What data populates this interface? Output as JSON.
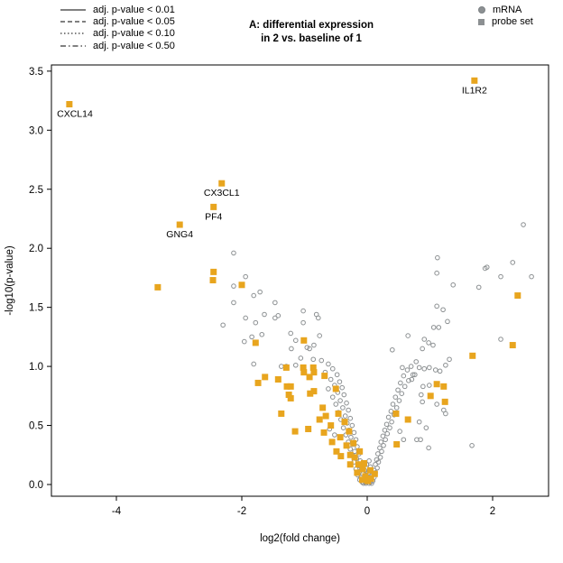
{
  "title": {
    "line1": "A: differential expression",
    "line2": "in 2 vs. baseline of 1"
  },
  "legend_lines": {
    "items": [
      {
        "style": "solid",
        "label": "adj. p-value < 0.01"
      },
      {
        "style": "dashed",
        "label": "adj. p-value < 0.05"
      },
      {
        "style": "dotted",
        "label": "adj. p-value < 0.10"
      },
      {
        "style": "dashdot",
        "label": "adj. p-value < 0.50"
      }
    ]
  },
  "legend_markers": {
    "items": [
      {
        "marker": "circle",
        "label": "mRNA"
      },
      {
        "marker": "square",
        "label": "probe set"
      }
    ]
  },
  "colors": {
    "probe_set_fill": "#e8a51e",
    "mrna_stroke": "#8c9092",
    "axis": "#000000",
    "text": "#000000",
    "background": "#ffffff"
  },
  "chart_data": {
    "type": "scatter",
    "title": "A: differential expression in 2 vs. baseline of 1",
    "xlabel": "log2(fold change)",
    "ylabel": "-log10(p-value)",
    "xlim": [
      -5.04,
      2.89
    ],
    "ylim": [
      -0.1,
      3.55
    ],
    "x_ticks": [
      -4,
      -2,
      0,
      2
    ],
    "y_ticks": [
      0.0,
      0.5,
      1.0,
      1.5,
      2.0,
      2.5,
      3.0,
      3.5
    ],
    "grid": false,
    "legend_position": "top",
    "labeled_points": [
      {
        "label": "CXCL14",
        "x": -4.75,
        "y": 3.22,
        "series": "probe set"
      },
      {
        "label": "IL1R2",
        "x": 1.71,
        "y": 3.42,
        "series": "probe set"
      },
      {
        "label": "CX3CL1",
        "x": -2.32,
        "y": 2.55,
        "series": "probe set"
      },
      {
        "label": "PF4",
        "x": -2.45,
        "y": 2.35,
        "series": "probe set"
      },
      {
        "label": "GNG4",
        "x": -2.99,
        "y": 2.2,
        "series": "probe set"
      }
    ],
    "series": [
      {
        "name": "mRNA",
        "marker": "open-circle",
        "color": "#8c9092",
        "points": [
          [
            -2.3,
            1.35
          ],
          [
            -2.13,
            1.96
          ],
          [
            -2.13,
            1.68
          ],
          [
            -2.13,
            1.54
          ],
          [
            -1.96,
            1.21
          ],
          [
            -1.94,
            1.76
          ],
          [
            -1.94,
            1.41
          ],
          [
            -1.84,
            1.25
          ],
          [
            -1.81,
            1.6
          ],
          [
            -1.81,
            1.02
          ],
          [
            -1.78,
            1.37
          ],
          [
            -1.71,
            1.63
          ],
          [
            -1.68,
            1.27
          ],
          [
            -1.64,
            1.44
          ],
          [
            -1.47,
            1.54
          ],
          [
            -1.47,
            1.41
          ],
          [
            -1.42,
            1.43
          ],
          [
            -1.37,
            1.0
          ],
          [
            -1.29,
            1.0
          ],
          [
            -1.22,
            1.28
          ],
          [
            -1.21,
            1.15
          ],
          [
            -1.14,
            1.22
          ],
          [
            -1.14,
            1.01
          ],
          [
            -1.06,
            1.07
          ],
          [
            -1.02,
            1.47
          ],
          [
            -1.02,
            1.37
          ],
          [
            -0.96,
            1.16
          ],
          [
            -0.92,
            1.15
          ],
          [
            -0.86,
            1.06
          ],
          [
            -0.85,
            1.18
          ],
          [
            -0.81,
            1.44
          ],
          [
            -0.78,
            1.41
          ],
          [
            -0.76,
            1.26
          ],
          [
            2.62,
            1.76
          ],
          [
            2.49,
            2.2
          ],
          [
            2.32,
            1.88
          ],
          [
            2.13,
            1.76
          ],
          [
            2.13,
            1.23
          ],
          [
            1.91,
            1.84
          ],
          [
            1.88,
            1.83
          ],
          [
            1.78,
            1.67
          ],
          [
            1.67,
            0.33
          ],
          [
            1.37,
            1.69
          ],
          [
            1.31,
            1.06
          ],
          [
            1.28,
            1.38
          ],
          [
            1.25,
            1.01
          ],
          [
            1.25,
            0.6
          ],
          [
            1.22,
            0.63
          ],
          [
            1.21,
            1.48
          ],
          [
            1.16,
            0.96
          ],
          [
            1.14,
            1.33
          ],
          [
            1.12,
            1.92
          ],
          [
            1.11,
            1.79
          ],
          [
            1.11,
            1.51
          ],
          [
            1.11,
            0.68
          ],
          [
            1.09,
            0.97
          ],
          [
            1.06,
            1.33
          ],
          [
            1.05,
            1.18
          ],
          [
            0.99,
            0.99
          ],
          [
            0.99,
            0.84
          ],
          [
            0.98,
            1.2
          ],
          [
            0.98,
            0.31
          ],
          [
            0.94,
            0.48
          ],
          [
            0.91,
            1.23
          ],
          [
            0.91,
            0.98
          ],
          [
            0.89,
            0.83
          ],
          [
            0.88,
            1.15
          ],
          [
            0.88,
            0.7
          ],
          [
            0.86,
            0.76
          ],
          [
            0.85,
            0.38
          ],
          [
            0.83,
            0.99
          ],
          [
            0.83,
            0.53
          ],
          [
            0.79,
            0.38
          ],
          [
            0.76,
            0.93
          ],
          [
            0.71,
            0.89
          ],
          [
            0.65,
            1.26
          ],
          [
            0.56,
            0.99
          ],
          [
            0.4,
            1.14
          ],
          [
            0.52,
            0.45
          ],
          [
            0.58,
            0.38
          ],
          [
            -0.73,
            1.05
          ],
          [
            -0.62,
            1.02
          ],
          [
            -0.55,
            0.98
          ],
          [
            -0.67,
            0.95
          ],
          [
            -0.48,
            0.93
          ],
          [
            -0.58,
            0.89
          ],
          [
            -0.44,
            0.87
          ],
          [
            -0.52,
            0.84
          ],
          [
            -0.62,
            0.81
          ],
          [
            -0.4,
            0.82
          ],
          [
            -0.47,
            0.78
          ],
          [
            -0.55,
            0.74
          ],
          [
            -0.37,
            0.76
          ],
          [
            -0.43,
            0.71
          ],
          [
            -0.5,
            0.68
          ],
          [
            -0.33,
            0.69
          ],
          [
            -0.39,
            0.65
          ],
          [
            -0.46,
            0.61
          ],
          [
            -0.3,
            0.63
          ],
          [
            -0.35,
            0.58
          ],
          [
            -0.42,
            0.55
          ],
          [
            -0.27,
            0.56
          ],
          [
            -0.32,
            0.52
          ],
          [
            -0.38,
            0.48
          ],
          [
            -0.24,
            0.5
          ],
          [
            -0.29,
            0.46
          ],
          [
            -0.34,
            0.42
          ],
          [
            -0.21,
            0.44
          ],
          [
            -0.26,
            0.4
          ],
          [
            -0.3,
            0.36
          ],
          [
            -0.18,
            0.38
          ],
          [
            -0.23,
            0.34
          ],
          [
            -0.27,
            0.3
          ],
          [
            -0.16,
            0.32
          ],
          [
            -0.2,
            0.28
          ],
          [
            -0.24,
            0.25
          ],
          [
            -0.13,
            0.26
          ],
          [
            -0.17,
            0.22
          ],
          [
            -0.21,
            0.19
          ],
          [
            -0.11,
            0.2
          ],
          [
            -0.14,
            0.16
          ],
          [
            -0.18,
            0.13
          ],
          [
            -0.09,
            0.14
          ],
          [
            -0.12,
            0.11
          ],
          [
            -0.15,
            0.08
          ],
          [
            -0.07,
            0.09
          ],
          [
            -0.1,
            0.06
          ],
          [
            -0.12,
            0.04
          ],
          [
            -0.05,
            0.05
          ],
          [
            -0.08,
            0.02
          ],
          [
            -0.03,
            0.02
          ],
          [
            -0.06,
            0.01
          ],
          [
            -0.02,
            0.01
          ],
          [
            -0.6,
            0.47
          ],
          [
            -0.52,
            0.42
          ],
          [
            0.78,
            1.04
          ],
          [
            0.7,
            1.0
          ],
          [
            0.64,
            0.97
          ],
          [
            0.73,
            0.93
          ],
          [
            0.58,
            0.92
          ],
          [
            0.66,
            0.88
          ],
          [
            0.53,
            0.86
          ],
          [
            0.6,
            0.83
          ],
          [
            0.49,
            0.8
          ],
          [
            0.55,
            0.77
          ],
          [
            0.45,
            0.74
          ],
          [
            0.51,
            0.71
          ],
          [
            0.41,
            0.68
          ],
          [
            0.47,
            0.65
          ],
          [
            0.38,
            0.62
          ],
          [
            0.43,
            0.59
          ],
          [
            0.34,
            0.57
          ],
          [
            0.39,
            0.53
          ],
          [
            0.31,
            0.51
          ],
          [
            0.36,
            0.48
          ],
          [
            0.28,
            0.46
          ],
          [
            0.32,
            0.43
          ],
          [
            0.25,
            0.41
          ],
          [
            0.29,
            0.38
          ],
          [
            0.22,
            0.36
          ],
          [
            0.26,
            0.33
          ],
          [
            0.2,
            0.31
          ],
          [
            0.23,
            0.28
          ],
          [
            0.17,
            0.26
          ],
          [
            0.21,
            0.23
          ],
          [
            0.15,
            0.21
          ],
          [
            0.18,
            0.19
          ],
          [
            0.13,
            0.17
          ],
          [
            0.16,
            0.14
          ],
          [
            0.11,
            0.12
          ],
          [
            0.13,
            0.1
          ],
          [
            0.09,
            0.08
          ],
          [
            0.11,
            0.06
          ],
          [
            0.07,
            0.05
          ],
          [
            0.09,
            0.03
          ],
          [
            0.05,
            0.02
          ],
          [
            0.07,
            0.01
          ],
          [
            0.03,
            0.01
          ],
          [
            0.02,
            0.03
          ],
          [
            0.04,
            0.06
          ],
          [
            -0.01,
            0.02
          ],
          [
            0.0,
            0.05
          ],
          [
            -0.02,
            0.08
          ],
          [
            0.02,
            0.1
          ],
          [
            -0.04,
            0.12
          ],
          [
            0.05,
            0.15
          ],
          [
            -0.01,
            0.17
          ],
          [
            0.03,
            0.2
          ]
        ]
      },
      {
        "name": "probe set",
        "marker": "filled-square",
        "color": "#e8a51e",
        "points": [
          [
            -3.34,
            1.67
          ],
          [
            -2.46,
            1.73
          ],
          [
            -2.45,
            1.8
          ],
          [
            -2.0,
            1.69
          ],
          [
            -1.78,
            1.2
          ],
          [
            -1.74,
            0.86
          ],
          [
            -1.63,
            0.91
          ],
          [
            -1.42,
            0.89
          ],
          [
            -1.37,
            0.6
          ],
          [
            -1.29,
            0.99
          ],
          [
            -1.28,
            0.83
          ],
          [
            -1.25,
            0.76
          ],
          [
            -1.22,
            0.83
          ],
          [
            -1.22,
            0.73
          ],
          [
            -1.15,
            0.45
          ],
          [
            -1.02,
            0.99
          ],
          [
            -1.01,
            1.22
          ],
          [
            -1.01,
            0.95
          ],
          [
            -0.94,
            0.47
          ],
          [
            -0.92,
            0.91
          ],
          [
            -0.91,
            0.77
          ],
          [
            -0.86,
            0.99
          ],
          [
            -0.85,
            0.95
          ],
          [
            -0.85,
            0.79
          ],
          [
            -0.76,
            0.55
          ],
          [
            -0.71,
            0.65
          ],
          [
            -0.69,
            0.44
          ],
          [
            -0.68,
            0.92
          ],
          [
            -0.66,
            0.58
          ],
          [
            -0.58,
            0.5
          ],
          [
            -0.56,
            0.36
          ],
          [
            -0.5,
            0.81
          ],
          [
            -0.49,
            0.28
          ],
          [
            -0.46,
            0.6
          ],
          [
            -0.43,
            0.4
          ],
          [
            -0.42,
            0.24
          ],
          [
            -0.36,
            0.53
          ],
          [
            -0.33,
            0.33
          ],
          [
            -0.29,
            0.45
          ],
          [
            -0.27,
            0.25
          ],
          [
            -0.27,
            0.17
          ],
          [
            -0.22,
            0.35
          ],
          [
            -0.2,
            0.23
          ],
          [
            -0.16,
            0.1
          ],
          [
            -0.14,
            0.17
          ],
          [
            -0.12,
            0.28
          ],
          [
            -0.08,
            0.04
          ],
          [
            -0.07,
            0.13
          ],
          [
            -0.05,
            0.18
          ],
          [
            -0.03,
            0.07
          ],
          [
            0.01,
            0.03
          ],
          [
            0.05,
            0.12
          ],
          [
            0.06,
            0.05
          ],
          [
            0.12,
            0.09
          ],
          [
            0.46,
            0.6
          ],
          [
            0.47,
            0.34
          ],
          [
            0.65,
            0.55
          ],
          [
            1.01,
            0.75
          ],
          [
            1.11,
            0.85
          ],
          [
            1.22,
            0.83
          ],
          [
            1.24,
            0.7
          ],
          [
            1.68,
            1.09
          ],
          [
            2.32,
            1.18
          ],
          [
            2.4,
            1.6
          ]
        ]
      }
    ]
  }
}
